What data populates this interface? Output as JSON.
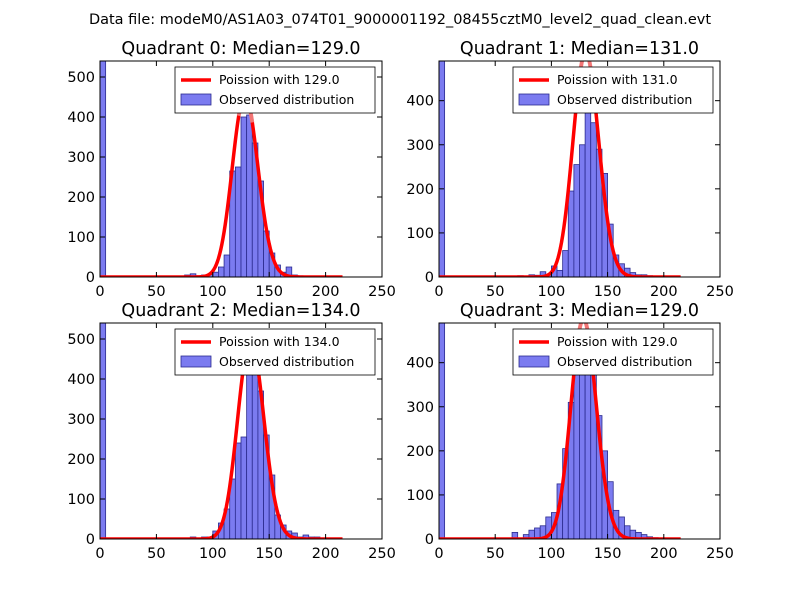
{
  "figure": {
    "suptitle": "Data file: modeM0/AS1A03_074T01_9000001192_08455cztM0_level2_quad_clean.evt"
  },
  "colors": {
    "bar_fill": "#7b7bf0",
    "bar_edge": "#2b2b8f",
    "curve": "#ff0000",
    "curve_peak": "#f08a8a"
  },
  "chart_data": [
    {
      "type": "bar",
      "title": "Quadrant 0: Median=129.0",
      "xlim": [
        0,
        250
      ],
      "ylim": [
        0,
        540
      ],
      "xticks": [
        0,
        50,
        100,
        150,
        200,
        250
      ],
      "yticks": [
        0,
        100,
        200,
        300,
        400,
        500
      ],
      "legend_location": "top-right",
      "legend": [
        "Poission with 129.0",
        "Observed distribution"
      ],
      "median": 129.0,
      "bin_width": 5,
      "bins": [
        {
          "x": 0,
          "count": 540
        },
        {
          "x": 75,
          "count": 5
        },
        {
          "x": 80,
          "count": 8
        },
        {
          "x": 85,
          "count": 3
        },
        {
          "x": 90,
          "count": 5
        },
        {
          "x": 95,
          "count": 6
        },
        {
          "x": 100,
          "count": 12
        },
        {
          "x": 105,
          "count": 25
        },
        {
          "x": 110,
          "count": 55
        },
        {
          "x": 115,
          "count": 265
        },
        {
          "x": 120,
          "count": 275
        },
        {
          "x": 125,
          "count": 400
        },
        {
          "x": 130,
          "count": 405
        },
        {
          "x": 135,
          "count": 335
        },
        {
          "x": 140,
          "count": 240
        },
        {
          "x": 145,
          "count": 115
        },
        {
          "x": 150,
          "count": 60
        },
        {
          "x": 155,
          "count": 30
        },
        {
          "x": 160,
          "count": 12
        },
        {
          "x": 165,
          "count": 25
        },
        {
          "x": 170,
          "count": 5
        },
        {
          "x": 175,
          "count": 3
        },
        {
          "x": 180,
          "count": 2
        }
      ],
      "curve_x_range": [
        0,
        215
      ]
    },
    {
      "type": "bar",
      "title": "Quadrant 1: Median=131.0",
      "xlim": [
        0,
        250
      ],
      "ylim": [
        0,
        490
      ],
      "xticks": [
        0,
        50,
        100,
        150,
        200,
        250
      ],
      "yticks": [
        0,
        100,
        200,
        300,
        400
      ],
      "legend_location": "top-right",
      "legend": [
        "Poission with 131.0",
        "Observed distribution"
      ],
      "median": 131.0,
      "bin_width": 5,
      "bins": [
        {
          "x": 0,
          "count": 490
        },
        {
          "x": 70,
          "count": 3
        },
        {
          "x": 75,
          "count": 2
        },
        {
          "x": 80,
          "count": 5
        },
        {
          "x": 85,
          "count": 4
        },
        {
          "x": 90,
          "count": 12
        },
        {
          "x": 95,
          "count": 5
        },
        {
          "x": 100,
          "count": 25
        },
        {
          "x": 105,
          "count": 15
        },
        {
          "x": 110,
          "count": 60
        },
        {
          "x": 115,
          "count": 195
        },
        {
          "x": 120,
          "count": 255
        },
        {
          "x": 125,
          "count": 300
        },
        {
          "x": 130,
          "count": 455
        },
        {
          "x": 135,
          "count": 350
        },
        {
          "x": 140,
          "count": 290
        },
        {
          "x": 145,
          "count": 235
        },
        {
          "x": 150,
          "count": 120
        },
        {
          "x": 155,
          "count": 50
        },
        {
          "x": 160,
          "count": 30
        },
        {
          "x": 165,
          "count": 20
        },
        {
          "x": 170,
          "count": 10
        },
        {
          "x": 175,
          "count": 5
        },
        {
          "x": 180,
          "count": 5
        },
        {
          "x": 185,
          "count": 3
        }
      ],
      "curve_x_range": [
        0,
        215
      ]
    },
    {
      "type": "bar",
      "title": "Quadrant 2: Median=134.0",
      "xlim": [
        0,
        250
      ],
      "ylim": [
        0,
        540
      ],
      "xticks": [
        0,
        50,
        100,
        150,
        200,
        250
      ],
      "yticks": [
        0,
        100,
        200,
        300,
        400,
        500
      ],
      "legend_location": "top-right",
      "legend": [
        "Poission with 134.0",
        "Observed distribution"
      ],
      "median": 134.0,
      "bin_width": 5,
      "bins": [
        {
          "x": 0,
          "count": 540
        },
        {
          "x": 80,
          "count": 5
        },
        {
          "x": 90,
          "count": 5
        },
        {
          "x": 95,
          "count": 5
        },
        {
          "x": 100,
          "count": 20
        },
        {
          "x": 105,
          "count": 40
        },
        {
          "x": 110,
          "count": 75
        },
        {
          "x": 115,
          "count": 150
        },
        {
          "x": 120,
          "count": 240
        },
        {
          "x": 125,
          "count": 255
        },
        {
          "x": 130,
          "count": 440
        },
        {
          "x": 135,
          "count": 445
        },
        {
          "x": 140,
          "count": 370
        },
        {
          "x": 145,
          "count": 260
        },
        {
          "x": 150,
          "count": 160
        },
        {
          "x": 155,
          "count": 60
        },
        {
          "x": 160,
          "count": 35
        },
        {
          "x": 165,
          "count": 20
        },
        {
          "x": 170,
          "count": 15
        },
        {
          "x": 175,
          "count": 5
        },
        {
          "x": 180,
          "count": 10
        },
        {
          "x": 185,
          "count": 5
        },
        {
          "x": 190,
          "count": 5
        }
      ],
      "curve_x_range": [
        0,
        215
      ]
    },
    {
      "type": "bar",
      "title": "Quadrant 3: Median=129.0",
      "xlim": [
        0,
        250
      ],
      "ylim": [
        0,
        490
      ],
      "xticks": [
        0,
        50,
        100,
        150,
        200,
        250
      ],
      "yticks": [
        0,
        100,
        200,
        300,
        400
      ],
      "legend_location": "top-right",
      "legend": [
        "Poission with 129.0",
        "Observed distribution"
      ],
      "median": 129.0,
      "bin_width": 5,
      "bins": [
        {
          "x": 0,
          "count": 490
        },
        {
          "x": 65,
          "count": 15
        },
        {
          "x": 75,
          "count": 10
        },
        {
          "x": 80,
          "count": 20
        },
        {
          "x": 85,
          "count": 25
        },
        {
          "x": 90,
          "count": 30
        },
        {
          "x": 95,
          "count": 50
        },
        {
          "x": 100,
          "count": 60
        },
        {
          "x": 105,
          "count": 125
        },
        {
          "x": 110,
          "count": 205
        },
        {
          "x": 115,
          "count": 310
        },
        {
          "x": 120,
          "count": 420
        },
        {
          "x": 125,
          "count": 445
        },
        {
          "x": 130,
          "count": 440
        },
        {
          "x": 135,
          "count": 405
        },
        {
          "x": 140,
          "count": 280
        },
        {
          "x": 145,
          "count": 200
        },
        {
          "x": 150,
          "count": 130
        },
        {
          "x": 155,
          "count": 65
        },
        {
          "x": 160,
          "count": 50
        },
        {
          "x": 165,
          "count": 30
        },
        {
          "x": 170,
          "count": 20
        },
        {
          "x": 175,
          "count": 15
        },
        {
          "x": 180,
          "count": 10
        },
        {
          "x": 185,
          "count": 5
        },
        {
          "x": 190,
          "count": 3
        }
      ],
      "curve_x_range": [
        0,
        215
      ]
    }
  ]
}
